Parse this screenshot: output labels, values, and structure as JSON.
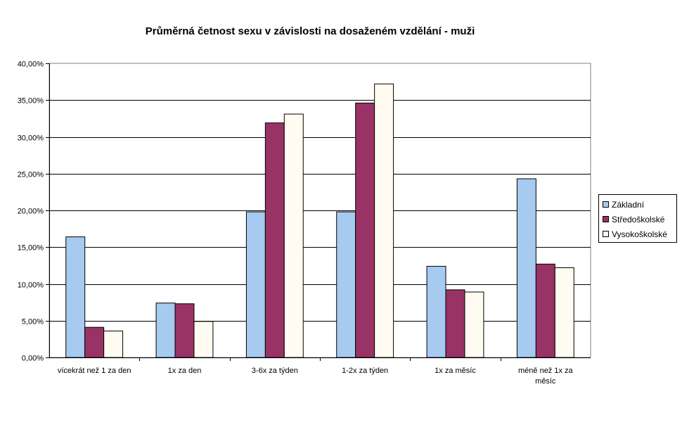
{
  "chart_data": {
    "type": "bar",
    "title": "Průměrná četnost sexu v závislosti na dosaženém vzdělání - muži",
    "categories": [
      [
        "vícekrát než 1 za den"
      ],
      [
        "1x za den"
      ],
      [
        "3-6x za týden"
      ],
      [
        "1-2x za týden"
      ],
      [
        "1x za měsíc"
      ],
      [
        "méně než 1x za",
        "měsíc"
      ]
    ],
    "series": [
      {
        "name": "Základní",
        "color": "#a6caf0",
        "values": [
          16.4,
          7.4,
          19.8,
          19.8,
          12.4,
          24.3
        ]
      },
      {
        "name": "Středoškolské",
        "color": "#993366",
        "values": [
          4.1,
          7.3,
          31.9,
          34.6,
          9.2,
          12.7
        ]
      },
      {
        "name": "Vysokoškolské",
        "color": "#fffbf0",
        "values": [
          3.6,
          4.9,
          33.1,
          37.2,
          8.9,
          12.2
        ]
      }
    ],
    "yticks": [
      "0,00%",
      "5,00%",
      "10,00%",
      "15,00%",
      "20,00%",
      "25,00%",
      "30,00%",
      "35,00%",
      "40,00%"
    ],
    "ylim": [
      0,
      40
    ],
    "ystep": 5,
    "grid": true,
    "legend": "right",
    "xlabel": "",
    "ylabel": ""
  }
}
